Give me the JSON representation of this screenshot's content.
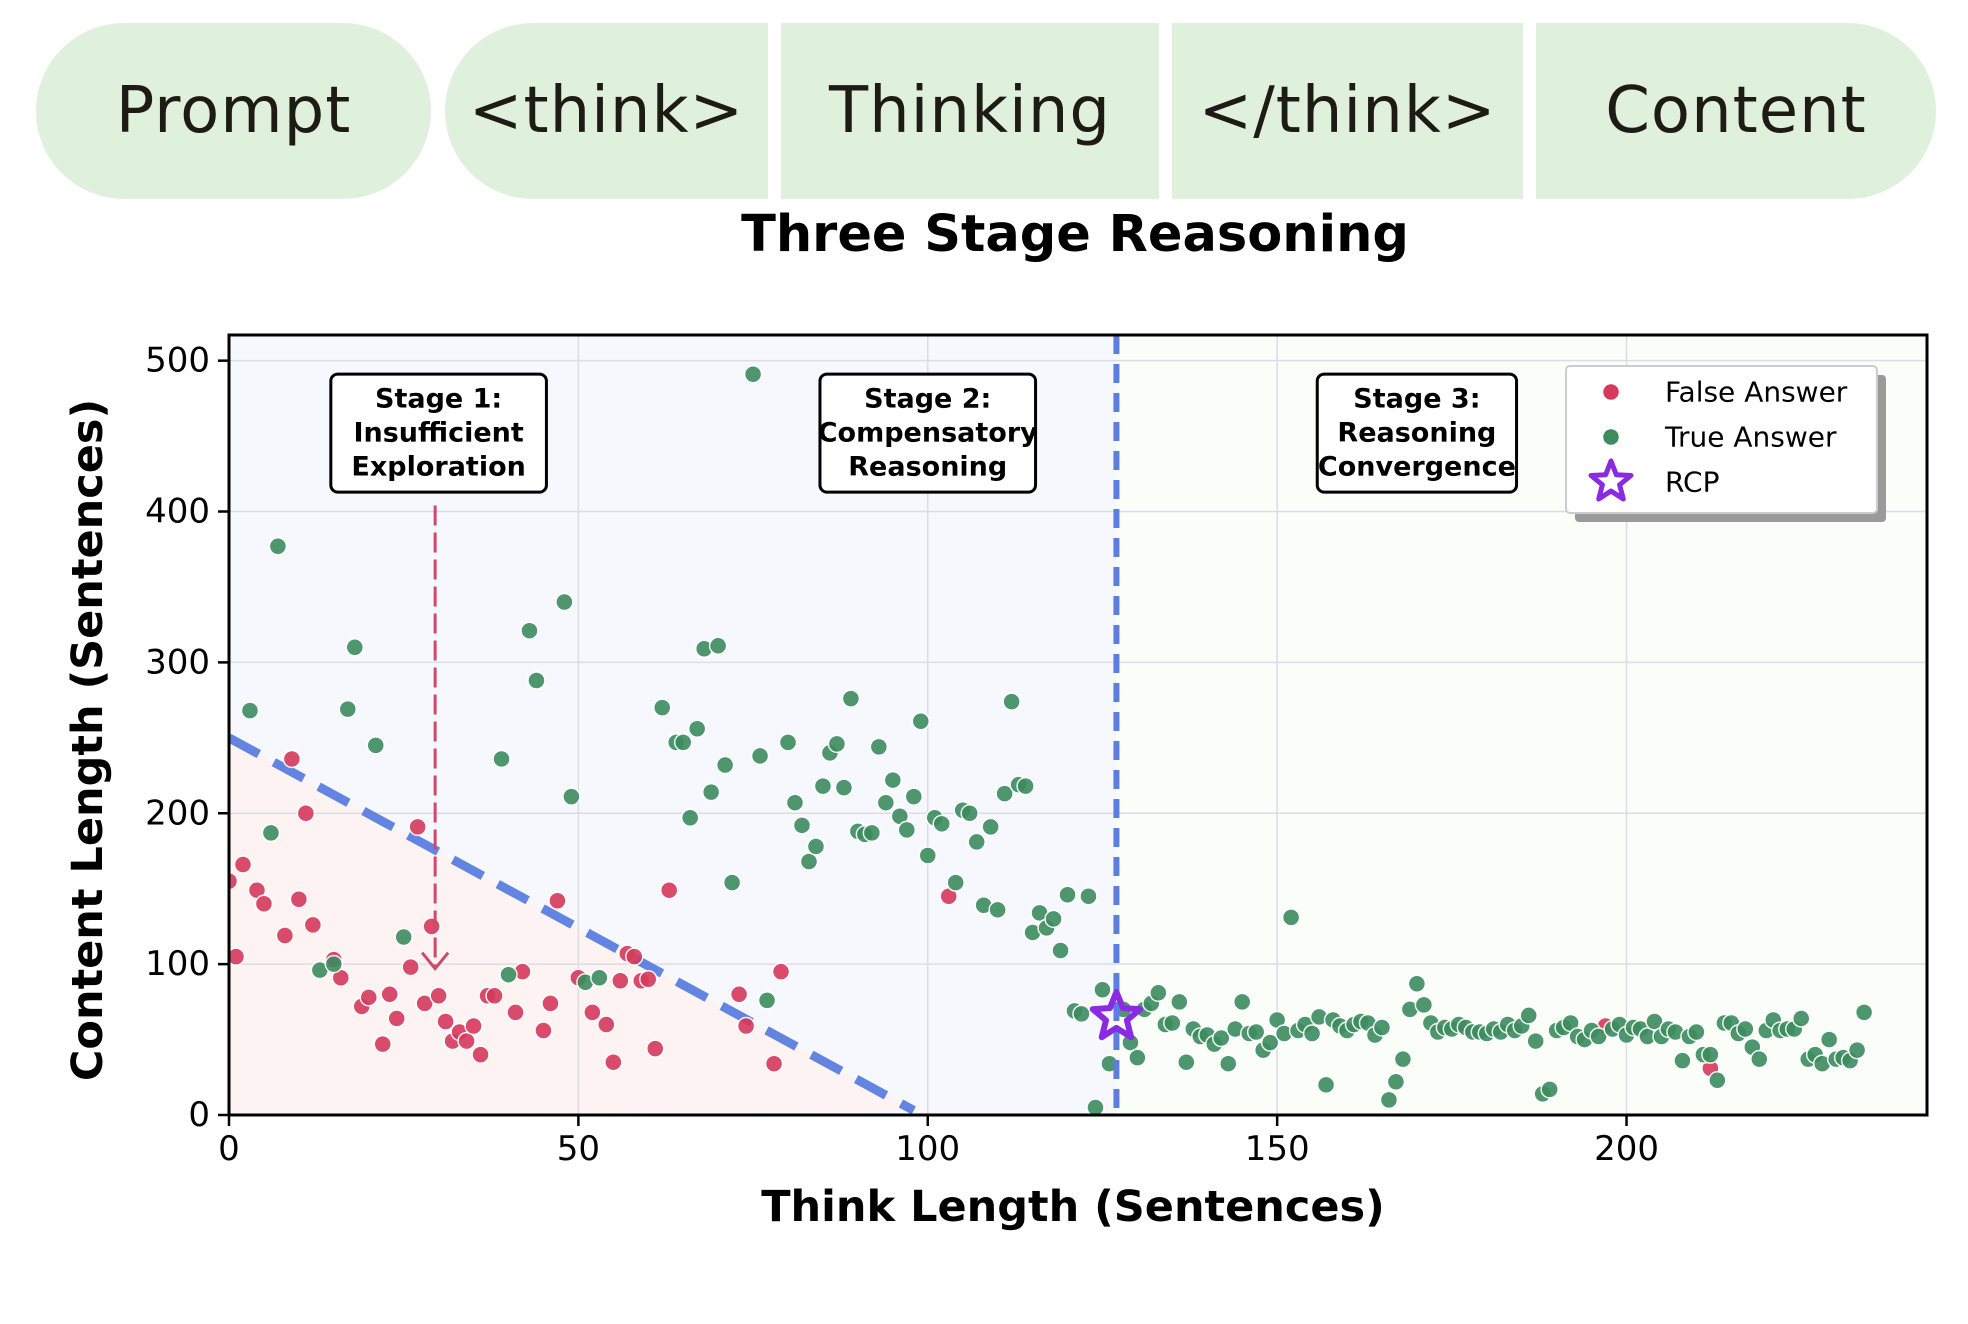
{
  "pipeline": {
    "segments": [
      "Prompt",
      "<think>",
      "Thinking",
      "</think>",
      "Content"
    ],
    "title": "Three Stage Reasoning",
    "fill_color": "#dff0dd"
  },
  "chart_data": {
    "type": "scatter",
    "xlabel": "Think Length (Sentences)",
    "ylabel": "Content Length (Sentences)",
    "xlim": [
      0,
      243
    ],
    "ylim": [
      0,
      517
    ],
    "x_ticks": [
      0,
      50,
      100,
      150,
      200
    ],
    "y_ticks": [
      0,
      100,
      200,
      300,
      400,
      500
    ],
    "grid": true,
    "legend": {
      "placement": "top-right",
      "entries": [
        {
          "label": "False Answer",
          "marker": "circle",
          "color": "#d6395c"
        },
        {
          "label": "True Answer",
          "marker": "circle",
          "color": "#3c8c5f"
        },
        {
          "label": "RCP",
          "marker": "star",
          "color": "#8a2be2"
        }
      ]
    },
    "stage_labels": [
      {
        "lines": [
          "Stage 1:",
          "Insufficient",
          "Exploration"
        ],
        "x": 30,
        "y": 452
      },
      {
        "lines": [
          "Stage 2:",
          "Compensatory",
          "Reasoning"
        ],
        "x": 100,
        "y": 452
      },
      {
        "lines": [
          "Stage 3:",
          "Reasoning",
          "Convergence"
        ],
        "x": 170,
        "y": 452
      }
    ],
    "stage1_arrow": {
      "x": 29.5,
      "y_from": 404,
      "y_to": 97
    },
    "boundary_line": {
      "from": [
        0,
        250
      ],
      "to": [
        98,
        3
      ],
      "color": "#5b7fe0",
      "style": "dashed"
    },
    "rcp_vline": {
      "x": 127,
      "color": "#5b7fe0",
      "style": "dashed"
    },
    "rcp_point": {
      "x": 127,
      "y": 65
    },
    "regions": [
      {
        "x_range": [
          0,
          127
        ],
        "color": "#f7f8fd"
      },
      {
        "x_range": [
          127,
          243
        ],
        "color": "#fbfdf9"
      },
      {
        "triangle": [
          [
            0,
            250
          ],
          [
            98,
            3
          ],
          [
            0,
            0
          ]
        ],
        "color": "#fdf3f3"
      }
    ],
    "series": [
      {
        "name": "False Answer",
        "color": "#d6395c",
        "points": [
          [
            0,
            155
          ],
          [
            1,
            105
          ],
          [
            2,
            166
          ],
          [
            4,
            149
          ],
          [
            5,
            140
          ],
          [
            8,
            119
          ],
          [
            9,
            236
          ],
          [
            10,
            143
          ],
          [
            11,
            200
          ],
          [
            12,
            126
          ],
          [
            15,
            103
          ],
          [
            16,
            91
          ],
          [
            19,
            72
          ],
          [
            20,
            78
          ],
          [
            22,
            47
          ],
          [
            23,
            80
          ],
          [
            24,
            64
          ],
          [
            26,
            98
          ],
          [
            27,
            191
          ],
          [
            28,
            74
          ],
          [
            29,
            125
          ],
          [
            30,
            79
          ],
          [
            31,
            62
          ],
          [
            32,
            49
          ],
          [
            33,
            55
          ],
          [
            34,
            49
          ],
          [
            35,
            59
          ],
          [
            36,
            40
          ],
          [
            37,
            79
          ],
          [
            38,
            79
          ],
          [
            41,
            68
          ],
          [
            42,
            95
          ],
          [
            45,
            56
          ],
          [
            46,
            74
          ],
          [
            47,
            142
          ],
          [
            50,
            91
          ],
          [
            52,
            68
          ],
          [
            54,
            60
          ],
          [
            55,
            35
          ],
          [
            56,
            89
          ],
          [
            57,
            107
          ],
          [
            58,
            105
          ],
          [
            59,
            89
          ],
          [
            60,
            90
          ],
          [
            61,
            44
          ],
          [
            63,
            149
          ],
          [
            73,
            80
          ],
          [
            74,
            59
          ],
          [
            78,
            34
          ],
          [
            79,
            95
          ],
          [
            103,
            145
          ],
          [
            197,
            59
          ],
          [
            212,
            31
          ]
        ]
      },
      {
        "name": "True Answer",
        "color": "#3c8c5f",
        "points": [
          [
            3,
            268
          ],
          [
            6,
            187
          ],
          [
            7,
            377
          ],
          [
            13,
            96
          ],
          [
            15,
            100
          ],
          [
            17,
            269
          ],
          [
            18,
            310
          ],
          [
            21,
            245
          ],
          [
            25,
            118
          ],
          [
            39,
            236
          ],
          [
            40,
            93
          ],
          [
            43,
            321
          ],
          [
            44,
            288
          ],
          [
            48,
            340
          ],
          [
            49,
            211
          ],
          [
            51,
            88
          ],
          [
            53,
            91
          ],
          [
            62,
            270
          ],
          [
            64,
            247
          ],
          [
            65,
            247
          ],
          [
            66,
            197
          ],
          [
            67,
            256
          ],
          [
            68,
            309
          ],
          [
            69,
            214
          ],
          [
            70,
            311
          ],
          [
            71,
            232
          ],
          [
            72,
            154
          ],
          [
            75,
            491
          ],
          [
            76,
            238
          ],
          [
            77,
            76
          ],
          [
            80,
            247
          ],
          [
            81,
            207
          ],
          [
            82,
            192
          ],
          [
            83,
            168
          ],
          [
            84,
            178
          ],
          [
            85,
            218
          ],
          [
            86,
            240
          ],
          [
            87,
            246
          ],
          [
            88,
            217
          ],
          [
            89,
            276
          ],
          [
            90,
            188
          ],
          [
            91,
            186
          ],
          [
            92,
            187
          ],
          [
            93,
            244
          ],
          [
            94,
            207
          ],
          [
            95,
            222
          ],
          [
            96,
            198
          ],
          [
            97,
            189
          ],
          [
            98,
            211
          ],
          [
            99,
            261
          ],
          [
            100,
            172
          ],
          [
            101,
            197
          ],
          [
            102,
            193
          ],
          [
            104,
            154
          ],
          [
            105,
            202
          ],
          [
            106,
            200
          ],
          [
            107,
            181
          ],
          [
            108,
            139
          ],
          [
            109,
            191
          ],
          [
            110,
            136
          ],
          [
            111,
            213
          ],
          [
            112,
            274
          ],
          [
            113,
            219
          ],
          [
            114,
            218
          ],
          [
            115,
            121
          ],
          [
            116,
            134
          ],
          [
            117,
            124
          ],
          [
            118,
            130
          ],
          [
            119,
            109
          ],
          [
            120,
            146
          ],
          [
            121,
            69
          ],
          [
            122,
            67
          ],
          [
            123,
            145
          ],
          [
            124,
            5
          ],
          [
            125,
            83
          ],
          [
            126,
            34
          ],
          [
            128,
            70
          ],
          [
            129,
            48
          ],
          [
            130,
            38
          ],
          [
            131,
            70
          ],
          [
            132,
            74
          ],
          [
            133,
            81
          ],
          [
            134,
            60
          ],
          [
            135,
            61
          ],
          [
            136,
            75
          ],
          [
            137,
            35
          ],
          [
            138,
            57
          ],
          [
            139,
            52
          ],
          [
            140,
            53
          ],
          [
            141,
            47
          ],
          [
            142,
            51
          ],
          [
            143,
            34
          ],
          [
            144,
            57
          ],
          [
            145,
            75
          ],
          [
            146,
            54
          ],
          [
            147,
            55
          ],
          [
            148,
            43
          ],
          [
            149,
            48
          ],
          [
            150,
            63
          ],
          [
            151,
            54
          ],
          [
            152,
            131
          ],
          [
            153,
            56
          ],
          [
            154,
            60
          ],
          [
            155,
            54
          ],
          [
            156,
            65
          ],
          [
            157,
            20
          ],
          [
            158,
            63
          ],
          [
            159,
            59
          ],
          [
            160,
            56
          ],
          [
            161,
            60
          ],
          [
            162,
            62
          ],
          [
            163,
            61
          ],
          [
            164,
            53
          ],
          [
            165,
            58
          ],
          [
            166,
            10
          ],
          [
            167,
            22
          ],
          [
            168,
            37
          ],
          [
            169,
            70
          ],
          [
            170,
            87
          ],
          [
            171,
            73
          ],
          [
            172,
            61
          ],
          [
            173,
            55
          ],
          [
            174,
            58
          ],
          [
            175,
            57
          ],
          [
            176,
            60
          ],
          [
            177,
            58
          ],
          [
            178,
            55
          ],
          [
            179,
            55
          ],
          [
            180,
            54
          ],
          [
            181,
            57
          ],
          [
            182,
            55
          ],
          [
            183,
            60
          ],
          [
            184,
            56
          ],
          [
            185,
            59
          ],
          [
            186,
            66
          ],
          [
            187,
            49
          ],
          [
            188,
            14
          ],
          [
            189,
            17
          ],
          [
            190,
            56
          ],
          [
            191,
            58
          ],
          [
            192,
            61
          ],
          [
            193,
            52
          ],
          [
            194,
            50
          ],
          [
            195,
            56
          ],
          [
            196,
            52
          ],
          [
            198,
            57
          ],
          [
            199,
            60
          ],
          [
            200,
            53
          ],
          [
            201,
            58
          ],
          [
            202,
            57
          ],
          [
            203,
            52
          ],
          [
            204,
            62
          ],
          [
            205,
            52
          ],
          [
            206,
            57
          ],
          [
            207,
            55
          ],
          [
            208,
            36
          ],
          [
            209,
            52
          ],
          [
            210,
            55
          ],
          [
            211,
            40
          ],
          [
            212,
            40
          ],
          [
            213,
            23
          ],
          [
            214,
            61
          ],
          [
            215,
            61
          ],
          [
            216,
            54
          ],
          [
            217,
            57
          ],
          [
            218,
            45
          ],
          [
            219,
            37
          ],
          [
            220,
            56
          ],
          [
            221,
            63
          ],
          [
            222,
            56
          ],
          [
            223,
            57
          ],
          [
            224,
            57
          ],
          [
            225,
            64
          ],
          [
            226,
            37
          ],
          [
            227,
            40
          ],
          [
            228,
            34
          ],
          [
            229,
            50
          ],
          [
            230,
            37
          ],
          [
            231,
            38
          ],
          [
            232,
            36
          ],
          [
            233,
            43
          ],
          [
            234,
            68
          ]
        ]
      }
    ]
  }
}
